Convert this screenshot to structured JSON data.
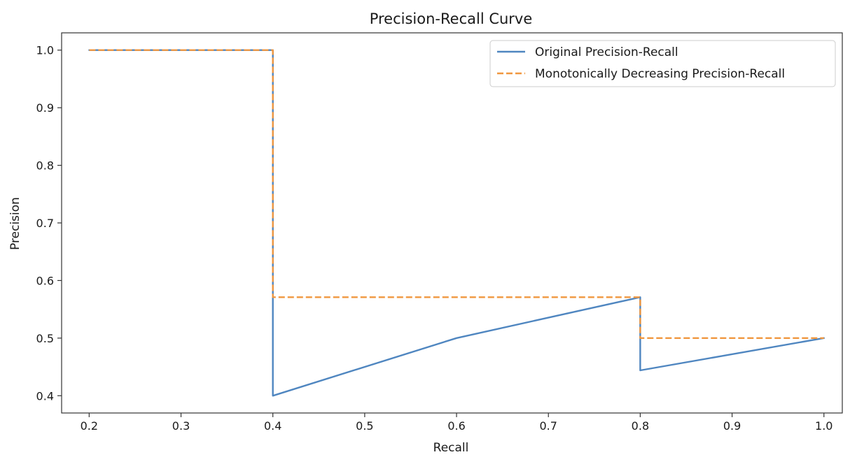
{
  "chart_data": {
    "type": "line",
    "title": "Precision-Recall Curve",
    "xlabel": "Recall",
    "ylabel": "Precision",
    "xlim": [
      0.17,
      1.02
    ],
    "ylim": [
      0.37,
      1.03
    ],
    "xticks": [
      0.2,
      0.3,
      0.4,
      0.5,
      0.6,
      0.7,
      0.8,
      0.9,
      1.0
    ],
    "xtick_labels": [
      "0.2",
      "0.3",
      "0.4",
      "0.5",
      "0.6",
      "0.7",
      "0.8",
      "0.9",
      "1.0"
    ],
    "yticks": [
      0.4,
      0.5,
      0.6,
      0.7,
      0.8,
      0.9,
      1.0
    ],
    "ytick_labels": [
      "0.4",
      "0.5",
      "0.6",
      "0.7",
      "0.8",
      "0.9",
      "1.0"
    ],
    "grid": false,
    "legend_position": "top-right",
    "series": [
      {
        "name": "Original Precision-Recall",
        "color": "#4f86c0",
        "style": "solid",
        "x": [
          0.2,
          0.4,
          0.4,
          0.6,
          0.8,
          0.8,
          1.0
        ],
        "y": [
          1.0,
          1.0,
          0.4,
          0.5,
          0.571,
          0.444,
          0.5
        ]
      },
      {
        "name": "Monotonically Decreasing Precision-Recall",
        "color": "#f0973f",
        "style": "dashed",
        "x": [
          0.2,
          0.4,
          0.4,
          0.8,
          0.8,
          1.0
        ],
        "y": [
          1.0,
          1.0,
          0.571,
          0.571,
          0.5,
          0.5
        ]
      }
    ]
  }
}
